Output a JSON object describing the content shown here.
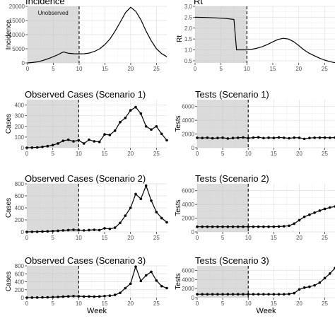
{
  "chart_data": [
    {
      "id": "inc",
      "type": "line",
      "title": "Incidence",
      "ylabel": "Incidence",
      "xlabel": "",
      "xlim": [
        0,
        27
      ],
      "ylim": [
        0,
        20000
      ],
      "xticks": [
        0,
        5,
        10,
        15,
        20,
        25
      ],
      "yticks": [
        0,
        5000,
        10000,
        15000,
        20000
      ],
      "ytick_labels": [
        "0",
        "5000",
        "10000",
        "15000",
        "20000"
      ],
      "shaded_region": [
        0,
        10
      ],
      "vline": 10,
      "annotation": "Unobserved",
      "markers": false,
      "x": [
        0,
        1,
        2,
        3,
        4,
        5,
        6,
        6.5,
        7,
        7.5,
        8,
        9,
        10,
        11,
        12,
        13,
        14,
        15,
        16,
        17,
        18,
        19,
        20,
        21,
        22,
        23,
        24,
        25,
        26,
        27
      ],
      "y": [
        0,
        150,
        400,
        900,
        1500,
        2200,
        3000,
        3500,
        3900,
        3600,
        3400,
        3250,
        3200,
        3250,
        3500,
        4100,
        5000,
        6500,
        8500,
        11300,
        14500,
        17800,
        19700,
        18200,
        15200,
        11200,
        7800,
        5000,
        3300,
        2200
      ]
    },
    {
      "id": "rt",
      "type": "line",
      "title": "Rt",
      "ylabel": "Rt",
      "xlabel": "",
      "xlim": [
        0,
        27
      ],
      "ylim": [
        0.4,
        3.0
      ],
      "xticks": [
        0,
        5,
        10,
        15,
        20,
        25
      ],
      "yticks": [
        0.5,
        1.0,
        1.5,
        2.0,
        2.5,
        3.0
      ],
      "ytick_labels": [
        "0.5",
        "1.0",
        "1.5",
        "2.0",
        "2.5",
        "3.0"
      ],
      "shaded_region": [
        0,
        10
      ],
      "vline": 10,
      "markers": false,
      "x": [
        0,
        2,
        4,
        6,
        7.5,
        8,
        9,
        10,
        11,
        12,
        13,
        14,
        15,
        16,
        17,
        18,
        19,
        20,
        21,
        22,
        23,
        24,
        25,
        26,
        27
      ],
      "y": [
        2.5,
        2.49,
        2.47,
        2.44,
        2.4,
        1.0,
        1.0,
        1.0,
        1.03,
        1.08,
        1.15,
        1.25,
        1.37,
        1.48,
        1.53,
        1.5,
        1.38,
        1.2,
        1.0,
        0.85,
        0.73,
        0.62,
        0.53,
        0.46,
        0.41
      ]
    },
    {
      "id": "obs1",
      "type": "line",
      "title": "Observed Cases (Scenario 1)",
      "ylabel": "Cases",
      "xlabel": "",
      "xlim": [
        0,
        27
      ],
      "ylim": [
        0,
        450
      ],
      "xticks": [
        0,
        5,
        10,
        15,
        20,
        25
      ],
      "yticks": [
        0,
        100,
        200,
        300,
        400
      ],
      "ytick_labels": [
        "0",
        "100",
        "200",
        "300",
        "400"
      ],
      "shaded_region": [
        0,
        10
      ],
      "vline": 10,
      "markers": true,
      "x": [
        0,
        1,
        2,
        3,
        4,
        5,
        6,
        7,
        8,
        9,
        10,
        11,
        12,
        13,
        14,
        15,
        16,
        17,
        18,
        19,
        20,
        21,
        22,
        23,
        24,
        25,
        26,
        27
      ],
      "y": [
        0,
        1,
        3,
        8,
        15,
        25,
        40,
        65,
        75,
        60,
        70,
        40,
        75,
        60,
        55,
        125,
        120,
        160,
        240,
        280,
        350,
        380,
        320,
        200,
        170,
        200,
        130,
        70
      ]
    },
    {
      "id": "tests1",
      "type": "line",
      "title": "Tests (Scenario 1)",
      "ylabel": "Tests",
      "xlabel": "",
      "xlim": [
        0,
        27
      ],
      "ylim": [
        0,
        7000
      ],
      "xticks": [
        0,
        5,
        10,
        15,
        20,
        25
      ],
      "yticks": [
        0,
        2000,
        4000,
        6000
      ],
      "ytick_labels": [
        "0",
        "2000",
        "4000",
        "6000"
      ],
      "shaded_region": [
        0,
        10
      ],
      "vline": 10,
      "markers": true,
      "x": [
        0,
        1,
        2,
        3,
        4,
        5,
        6,
        7,
        8,
        9,
        10,
        11,
        12,
        13,
        14,
        15,
        16,
        17,
        18,
        19,
        20,
        21,
        22,
        23,
        24,
        25,
        26,
        27
      ],
      "y": [
        1450,
        1420,
        1460,
        1380,
        1420,
        1460,
        1350,
        1420,
        1450,
        1500,
        1400,
        1480,
        1520,
        1410,
        1460,
        1430,
        1500,
        1450,
        1380,
        1470,
        1450,
        1300,
        1420,
        1460,
        1470,
        1480,
        1450,
        1480
      ]
    },
    {
      "id": "obs2",
      "type": "line",
      "title": "Observed Cases (Scenario 2)",
      "ylabel": "Cases",
      "xlabel": "",
      "xlim": [
        0,
        27
      ],
      "ylim": [
        0,
        800
      ],
      "xticks": [
        0,
        5,
        10,
        15,
        20,
        25
      ],
      "yticks": [
        0,
        200,
        400,
        600,
        800
      ],
      "ytick_labels": [
        "0",
        "200",
        "400",
        "600",
        "800"
      ],
      "shaded_region": [
        0,
        10
      ],
      "vline": 10,
      "markers": true,
      "x": [
        0,
        1,
        2,
        3,
        4,
        5,
        6,
        7,
        8,
        9,
        10,
        11,
        12,
        13,
        14,
        15,
        16,
        17,
        18,
        19,
        20,
        21,
        22,
        23,
        24,
        25,
        26,
        27
      ],
      "y": [
        0,
        1,
        3,
        6,
        9,
        13,
        18,
        25,
        30,
        35,
        30,
        25,
        30,
        35,
        30,
        60,
        50,
        70,
        150,
        270,
        400,
        630,
        550,
        770,
        520,
        330,
        230,
        160
      ]
    },
    {
      "id": "tests2",
      "type": "line",
      "title": "Tests (Scenario 2)",
      "ylabel": "Tests",
      "xlabel": "",
      "xlim": [
        0,
        27
      ],
      "ylim": [
        0,
        7000
      ],
      "xticks": [
        0,
        5,
        10,
        15,
        20,
        25
      ],
      "yticks": [
        0,
        2000,
        4000,
        6000
      ],
      "ytick_labels": [
        "0",
        "2000",
        "4000",
        "6000"
      ],
      "shaded_region": [
        0,
        10
      ],
      "vline": 10,
      "markers": true,
      "x": [
        0,
        1,
        2,
        3,
        4,
        5,
        6,
        7,
        8,
        9,
        10,
        11,
        12,
        13,
        14,
        15,
        16,
        17,
        18,
        19,
        20,
        21,
        22,
        23,
        24,
        25,
        26,
        27
      ],
      "y": [
        750,
        750,
        750,
        750,
        750,
        750,
        750,
        750,
        750,
        750,
        750,
        750,
        750,
        750,
        750,
        750,
        780,
        820,
        900,
        1200,
        1700,
        2200,
        2500,
        2800,
        3100,
        3350,
        3550,
        3700
      ]
    },
    {
      "id": "obs3",
      "type": "line",
      "title": "Observed Cases (Scenario 3)",
      "ylabel": "Cases",
      "xlabel": "Week",
      "xlim": [
        0,
        27
      ],
      "ylim": [
        0,
        800
      ],
      "xticks": [
        0,
        5,
        10,
        15,
        20,
        25
      ],
      "yticks": [
        0,
        200,
        400,
        600,
        800
      ],
      "ytick_labels": [
        "0",
        "200",
        "400",
        "600",
        "800"
      ],
      "shaded_region": [
        0,
        10
      ],
      "vline": 10,
      "markers": true,
      "x": [
        0,
        1,
        2,
        3,
        4,
        5,
        6,
        7,
        8,
        9,
        10,
        11,
        12,
        13,
        14,
        15,
        16,
        17,
        18,
        19,
        20,
        21,
        22,
        23,
        24,
        25,
        26,
        27
      ],
      "y": [
        0,
        1,
        3,
        6,
        9,
        13,
        18,
        25,
        32,
        40,
        35,
        28,
        30,
        25,
        30,
        40,
        50,
        70,
        120,
        240,
        350,
        780,
        420,
        560,
        650,
        430,
        290,
        240
      ]
    },
    {
      "id": "tests3",
      "type": "line",
      "title": "Tests (Scenario 3)",
      "ylabel": "Tests",
      "xlabel": "Week",
      "xlim": [
        0,
        27
      ],
      "ylim": [
        0,
        7000
      ],
      "xticks": [
        0,
        5,
        10,
        15,
        20,
        25
      ],
      "yticks": [
        0,
        2000,
        4000,
        6000
      ],
      "ytick_labels": [
        "0",
        "2000",
        "4000",
        "6000"
      ],
      "shaded_region": [
        0,
        10
      ],
      "vline": 10,
      "markers": true,
      "x": [
        0,
        1,
        2,
        3,
        4,
        5,
        6,
        7,
        8,
        9,
        10,
        11,
        12,
        13,
        14,
        15,
        16,
        17,
        18,
        19,
        20,
        21,
        22,
        23,
        24,
        25,
        26,
        27
      ],
      "y": [
        750,
        750,
        750,
        750,
        750,
        750,
        750,
        750,
        750,
        750,
        750,
        750,
        750,
        750,
        750,
        750,
        750,
        750,
        800,
        1000,
        1800,
        2200,
        2400,
        2700,
        3300,
        4300,
        5300,
        6500
      ]
    }
  ]
}
